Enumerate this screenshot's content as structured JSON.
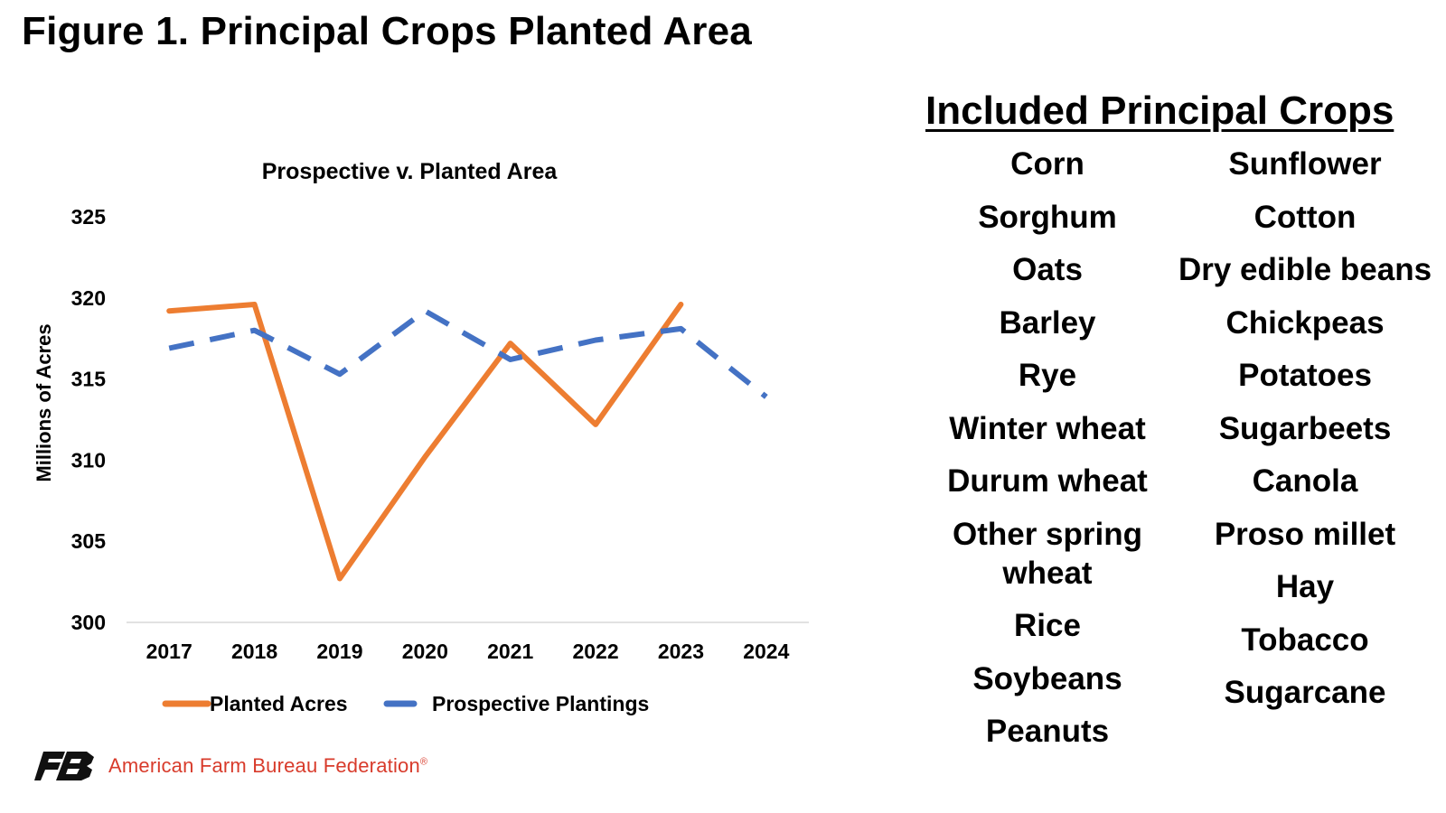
{
  "figure_title": "Figure 1. Principal Crops Planted Area",
  "crops_panel": {
    "title": "Included Principal Crops",
    "left_column": [
      "Corn",
      "Sorghum",
      "Oats",
      "Barley",
      "Rye",
      "Winter wheat",
      "Durum wheat",
      "Other spring wheat",
      "Rice",
      "Soybeans",
      "Peanuts"
    ],
    "right_column": [
      "Sunflower",
      "Cotton",
      "Dry edible beans",
      "Chickpeas",
      "Potatoes",
      "Sugarbeets",
      "Canola",
      "Proso millet",
      "Hay",
      "Tobacco",
      "Sugarcane"
    ]
  },
  "footer": {
    "org_name": "American Farm Bureau Federation",
    "registered_mark": "®",
    "colors": {
      "logo": "#111111",
      "org_text": "#d83b2b"
    }
  },
  "chart_data": {
    "type": "line",
    "title": "Prospective v. Planted Area",
    "xlabel": "",
    "ylabel": "Millions of Acres",
    "categories": [
      "2017",
      "2018",
      "2019",
      "2020",
      "2021",
      "2022",
      "2023",
      "2024"
    ],
    "ylim": [
      300,
      325
    ],
    "yticks": [
      300,
      305,
      310,
      315,
      320,
      325
    ],
    "grid": false,
    "legend_position": "bottom",
    "series": [
      {
        "name": "Planted Acres",
        "style": "solid",
        "color": "#ed7d31",
        "values": [
          319.2,
          319.6,
          302.7,
          310.2,
          317.2,
          312.2,
          319.6,
          null
        ]
      },
      {
        "name": "Prospective Plantings",
        "style": "dashed",
        "color": "#4472c4",
        "values": [
          316.9,
          318.0,
          315.3,
          319.2,
          316.2,
          317.4,
          318.1,
          313.9
        ]
      }
    ]
  }
}
